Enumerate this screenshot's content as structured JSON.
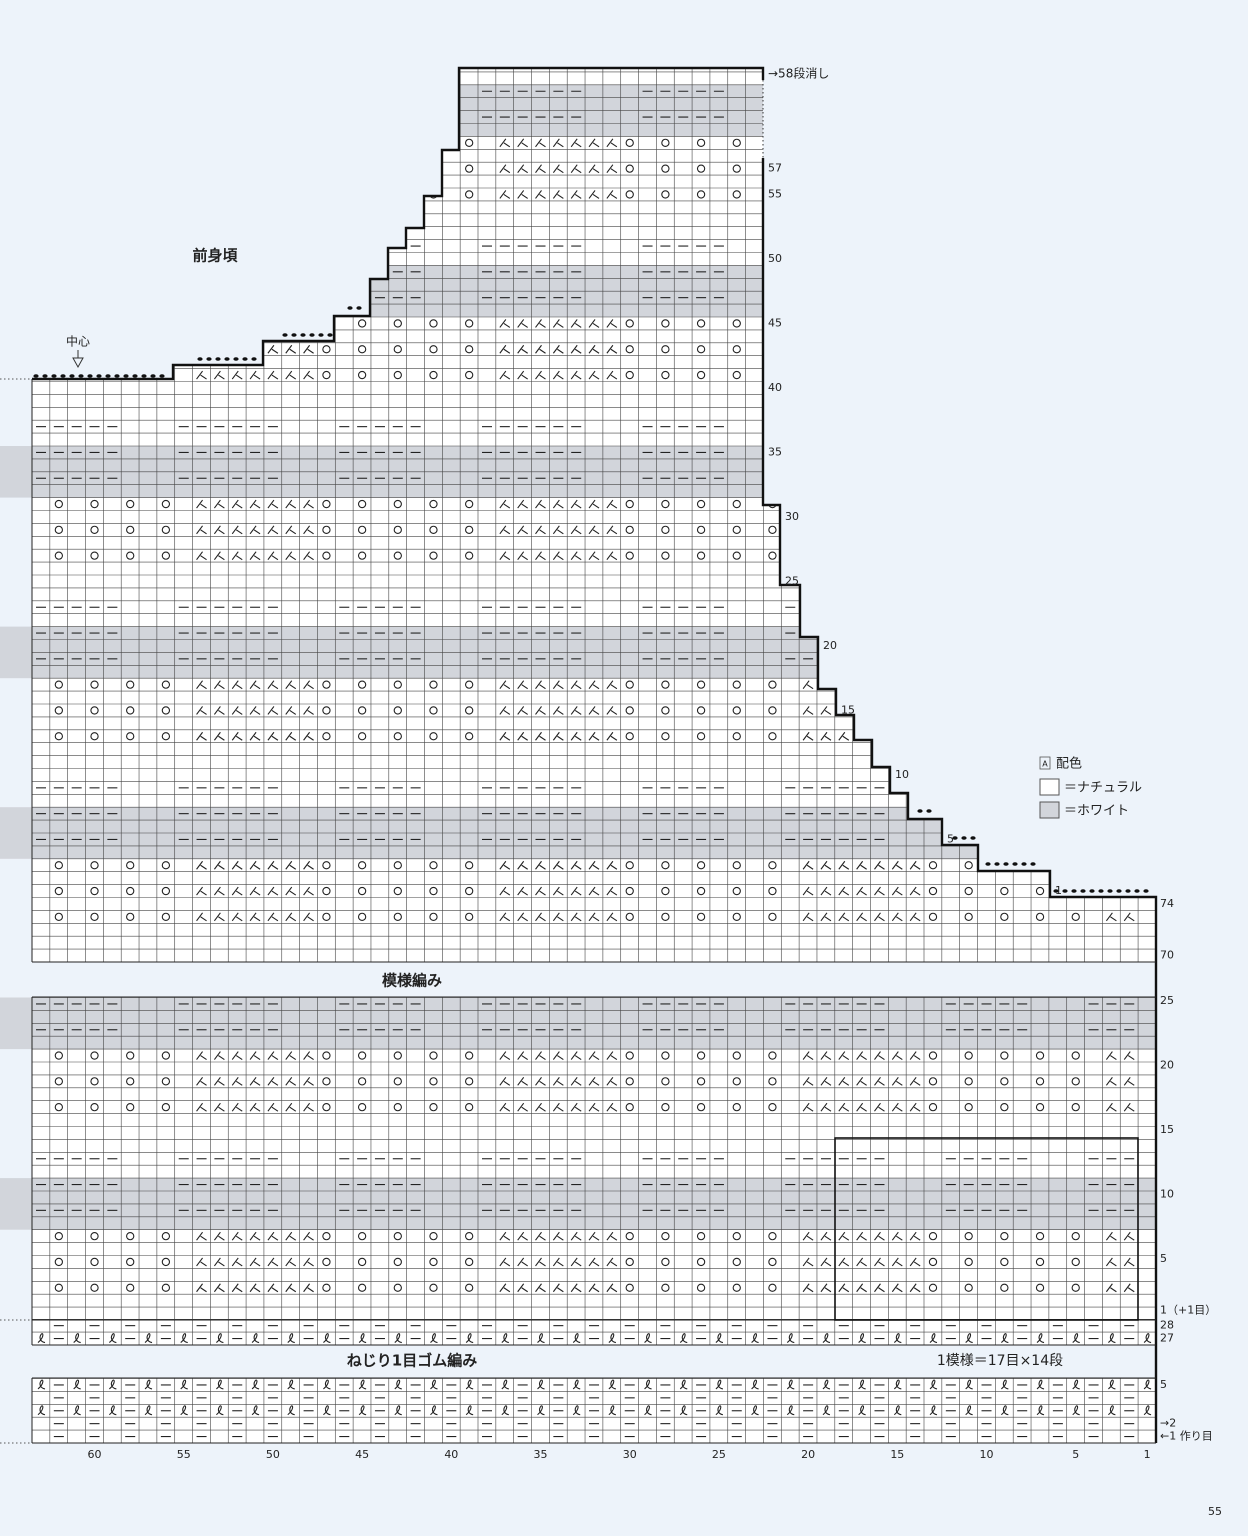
{
  "title": "前身頃",
  "center_label": "中心",
  "top_note": "→58段消し",
  "section_labels": {
    "pattern": "模様編み",
    "rib": "ねじり1目ゴム編み",
    "repeat": "1模様＝17目×14段"
  },
  "legend": {
    "marker": "A",
    "title": "配色",
    "items": [
      "＝ナチュラル",
      "＝ホワイト"
    ]
  },
  "body_rows": [
    57,
    55,
    50,
    45,
    40,
    35,
    30,
    25,
    20,
    15,
    10,
    5,
    1
  ],
  "upper_rows": [
    74,
    70
  ],
  "pattern_rows": [
    25,
    20,
    15,
    10,
    5,
    {
      "value": 1,
      "label": "1（+1目）"
    }
  ],
  "rib_top_rows": [
    28,
    27
  ],
  "rib_rows": [
    5,
    {
      "value": 2,
      "label": "→2"
    },
    {
      "value": 1,
      "label": "←1 作り目"
    }
  ],
  "stitch_numbers": [
    60,
    55,
    50,
    45,
    40,
    35,
    30,
    25,
    20,
    15,
    10,
    5,
    1
  ],
  "page_number": "55"
}
